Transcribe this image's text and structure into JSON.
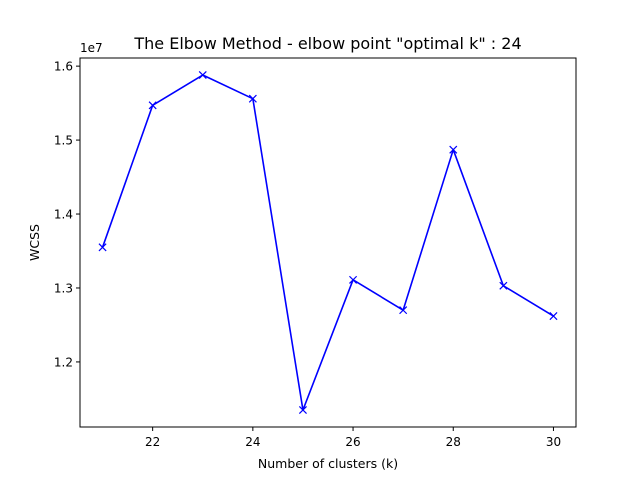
{
  "chart_data": {
    "type": "line",
    "title": "The Elbow Method - elbow point \"optimal k\" : 24",
    "xlabel": "Number of clusters (k)",
    "ylabel": "WCSS",
    "y_offset_label": "1e7",
    "x": [
      21,
      22,
      23,
      24,
      25,
      26,
      27,
      28,
      29,
      30
    ],
    "series": [
      {
        "values": [
          13550000,
          15470000,
          15880000,
          15560000,
          11350000,
          13110000,
          12700000,
          14870000,
          13030000,
          12620000
        ],
        "color": "#0000ff",
        "marker": "x"
      }
    ],
    "xlim": [
      20.55,
      30.45
    ],
    "ylim": [
      11120000,
      16110000
    ],
    "x_ticks": [
      22,
      24,
      26,
      28,
      30
    ],
    "x_tick_labels": [
      "22",
      "24",
      "26",
      "28",
      "30"
    ],
    "y_ticks": [
      12000000,
      13000000,
      14000000,
      15000000,
      16000000
    ],
    "y_tick_labels": [
      "1.2",
      "1.3",
      "1.4",
      "1.5",
      "1.6"
    ],
    "grid": false,
    "legend": "none"
  }
}
